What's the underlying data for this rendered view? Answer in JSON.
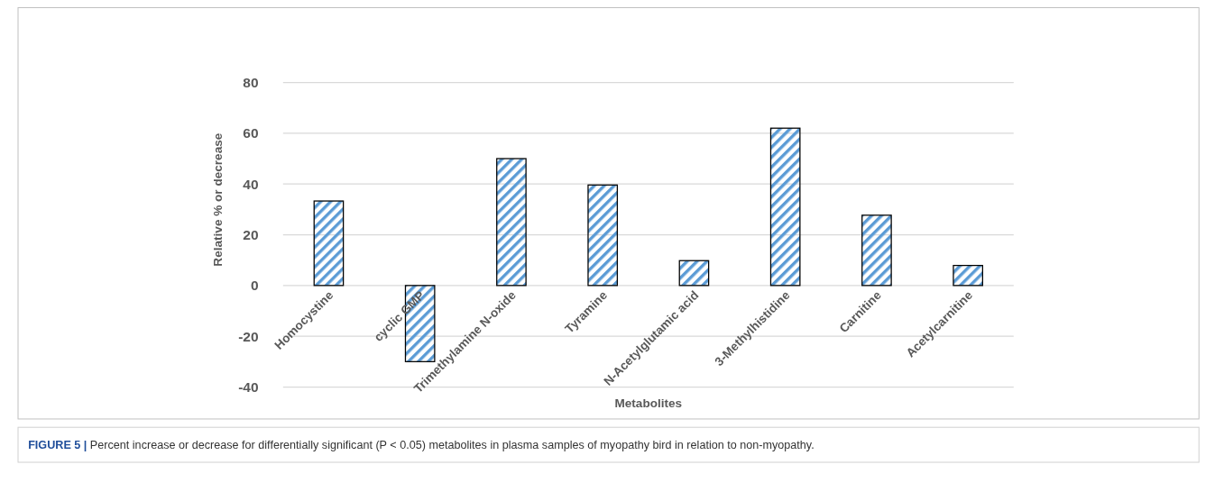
{
  "chart_data": {
    "type": "bar",
    "xlabel": "Metabolites",
    "ylabel": "Relative % or decrease",
    "categories": [
      "Homocystine",
      "cyclic GMP",
      "Trimethylamine N-oxide",
      "Tyramine",
      "N-Acetylglutamic acid",
      "3-Methylhistidine",
      "Carnitine",
      "Acetylcarnitine"
    ],
    "values": [
      33.3,
      -30,
      50,
      39.6,
      9.8,
      62,
      27.7,
      7.9
    ],
    "color": "#5b9bd5",
    "ylim": [
      -40,
      80
    ],
    "yticks": [
      -40,
      -20,
      0,
      20,
      40,
      60,
      80
    ],
    "grid": "y",
    "annotations": [
      "FIGURE 5 | Percent increase or decrease for differentially significant (P < 0.05) metabolites in plasma samples of myopathy bird in relation to non-myopathy."
    ]
  }
}
